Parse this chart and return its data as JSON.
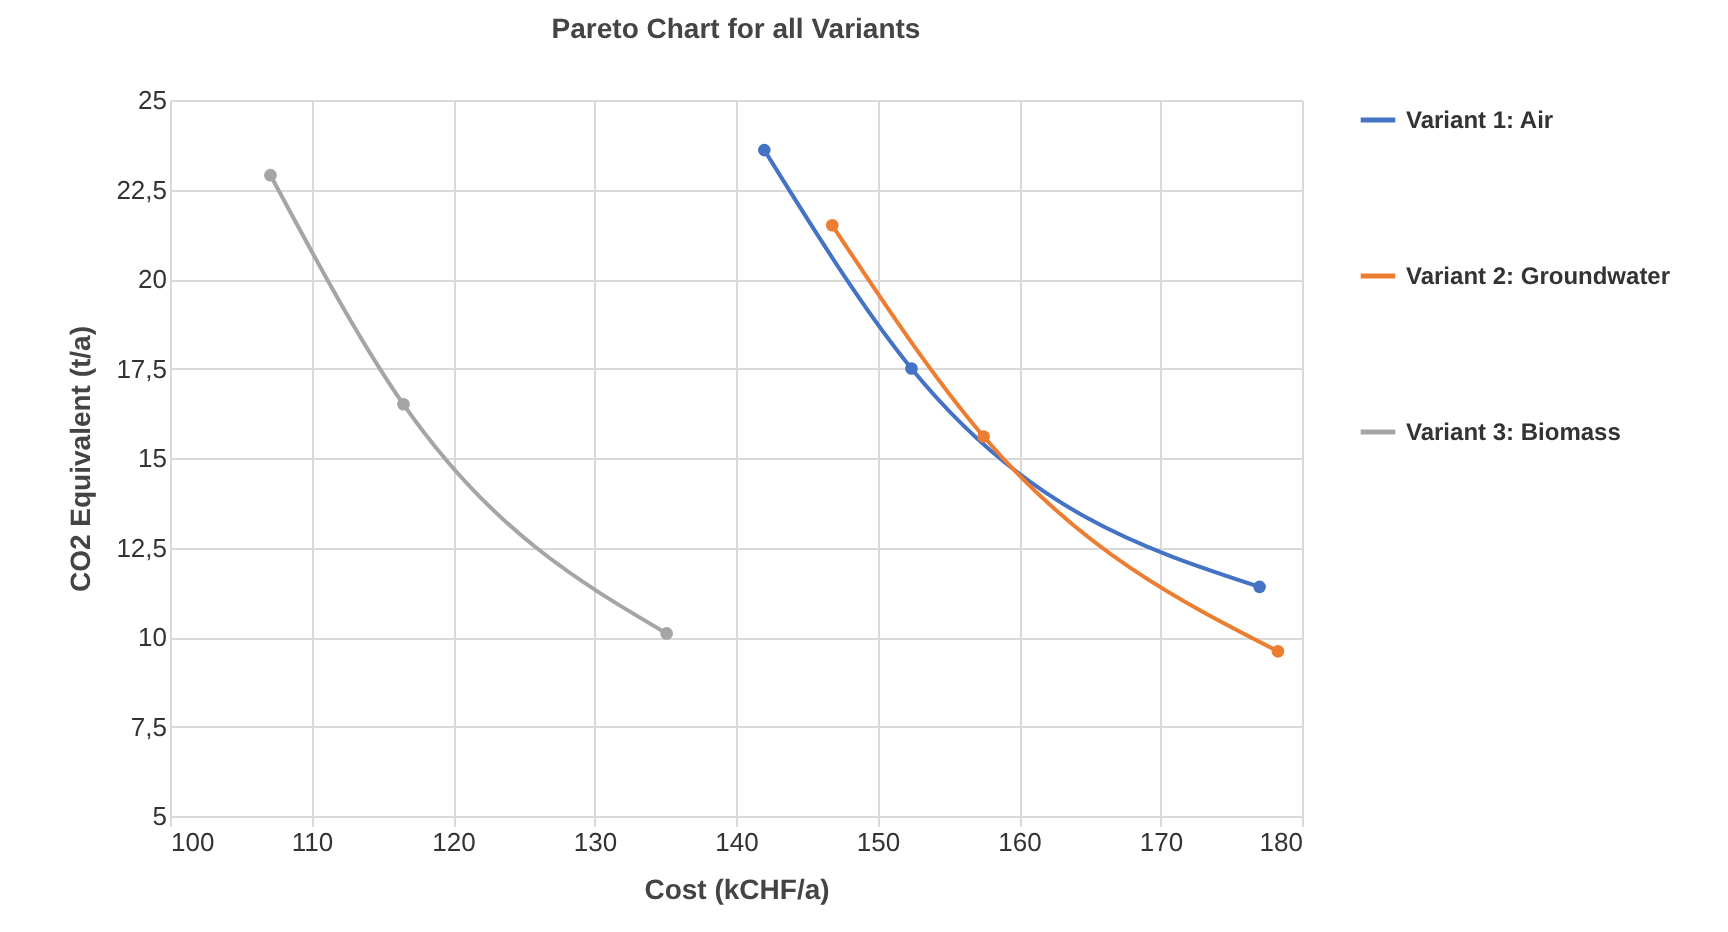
{
  "chart_data": {
    "type": "line",
    "title": "Pareto Chart for all Variants",
    "xlabel": "Cost (kCHF/a)",
    "ylabel": "CO2 Equivalent (t/a)",
    "xlim": [
      100,
      180
    ],
    "xticks": [
      100,
      110,
      120,
      130,
      140,
      150,
      160,
      170,
      180
    ],
    "ylim": [
      5,
      25
    ],
    "yticks": [
      5,
      {
        "value": 7.5,
        "label": "7,5"
      },
      10,
      {
        "value": 12.5,
        "label": "12,5"
      },
      15,
      {
        "value": 17.5,
        "label": "17,5"
      },
      20,
      {
        "value": 22.5,
        "label": "22,5"
      },
      25
    ],
    "grid": true,
    "legend": "right",
    "marker": "circle",
    "line_style": "solid",
    "series": [
      {
        "name": "Variant 1: Air",
        "color": "#4472c4",
        "x": [
          142,
          152.4,
          177
        ],
        "values": [
          23.6,
          17.5,
          11.4
        ]
      },
      {
        "name": "Variant 2: Groundwater",
        "color": "#ed7d31",
        "x": [
          146.8,
          157.5,
          178.3
        ],
        "values": [
          21.5,
          15.6,
          9.6
        ]
      },
      {
        "name": "Variant 3: Biomass",
        "color": "#a5a5a5",
        "x": [
          107.1,
          116.5,
          135.1
        ],
        "values": [
          22.9,
          16.5,
          10.1
        ]
      }
    ]
  }
}
